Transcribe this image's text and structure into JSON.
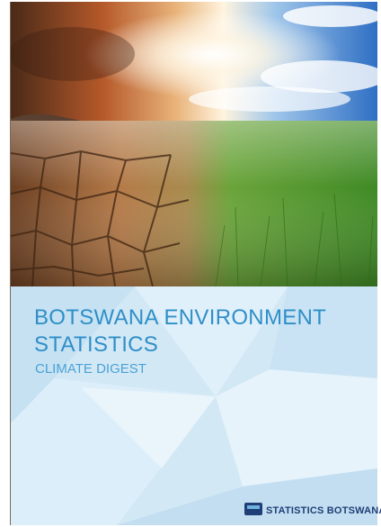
{
  "cover": {
    "title_lines": [
      "BOTSWANA ENVIRONMENT",
      "STATISTICS"
    ],
    "subtitle": "CLIMATE DIGEST",
    "publisher": "STATISTICS BOTSWANA"
  }
}
